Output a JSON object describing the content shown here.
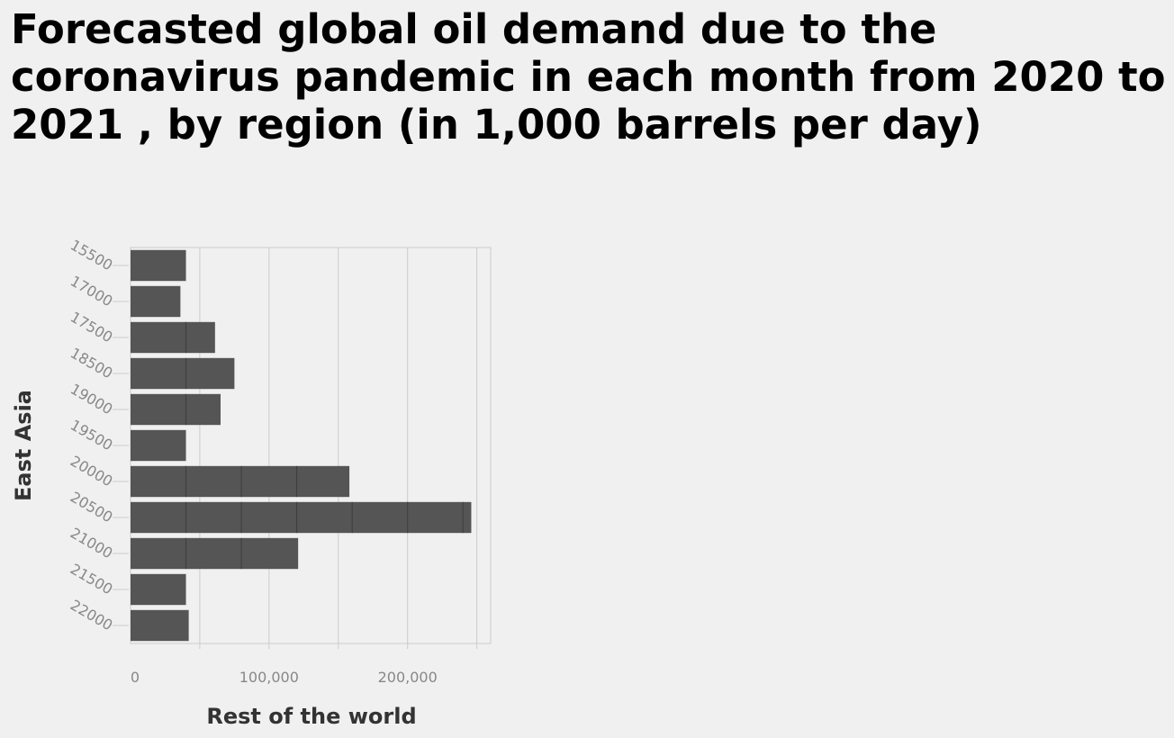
{
  "chart_data": {
    "type": "bar",
    "orientation": "horizontal",
    "title": "Forecasted global oil demand due to the coronavirus pandemic in each month from 2020 to 2021 , by region (in 1,000 barrels per day)",
    "xlabel": "Rest of the world",
    "ylabel": "East Asia",
    "categories": [
      "15500",
      "17000",
      "17500",
      "18500",
      "19000",
      "19500",
      "20000",
      "20500",
      "21000",
      "21500",
      "22000"
    ],
    "values": [
      40000,
      36000,
      61000,
      75000,
      65000,
      40000,
      158000,
      246000,
      121000,
      40000,
      42000
    ],
    "segment_value": 40000,
    "xlim": [
      0,
      260000
    ],
    "xticks": [
      0,
      100000,
      200000
    ],
    "xtick_labels": [
      "0",
      "100,000",
      "200,000"
    ],
    "grid": true,
    "colors": {
      "bar": "#555555",
      "bar_divider": "#3d3d3d",
      "grid": "#cccccc",
      "background": "#f0f0f0"
    }
  }
}
